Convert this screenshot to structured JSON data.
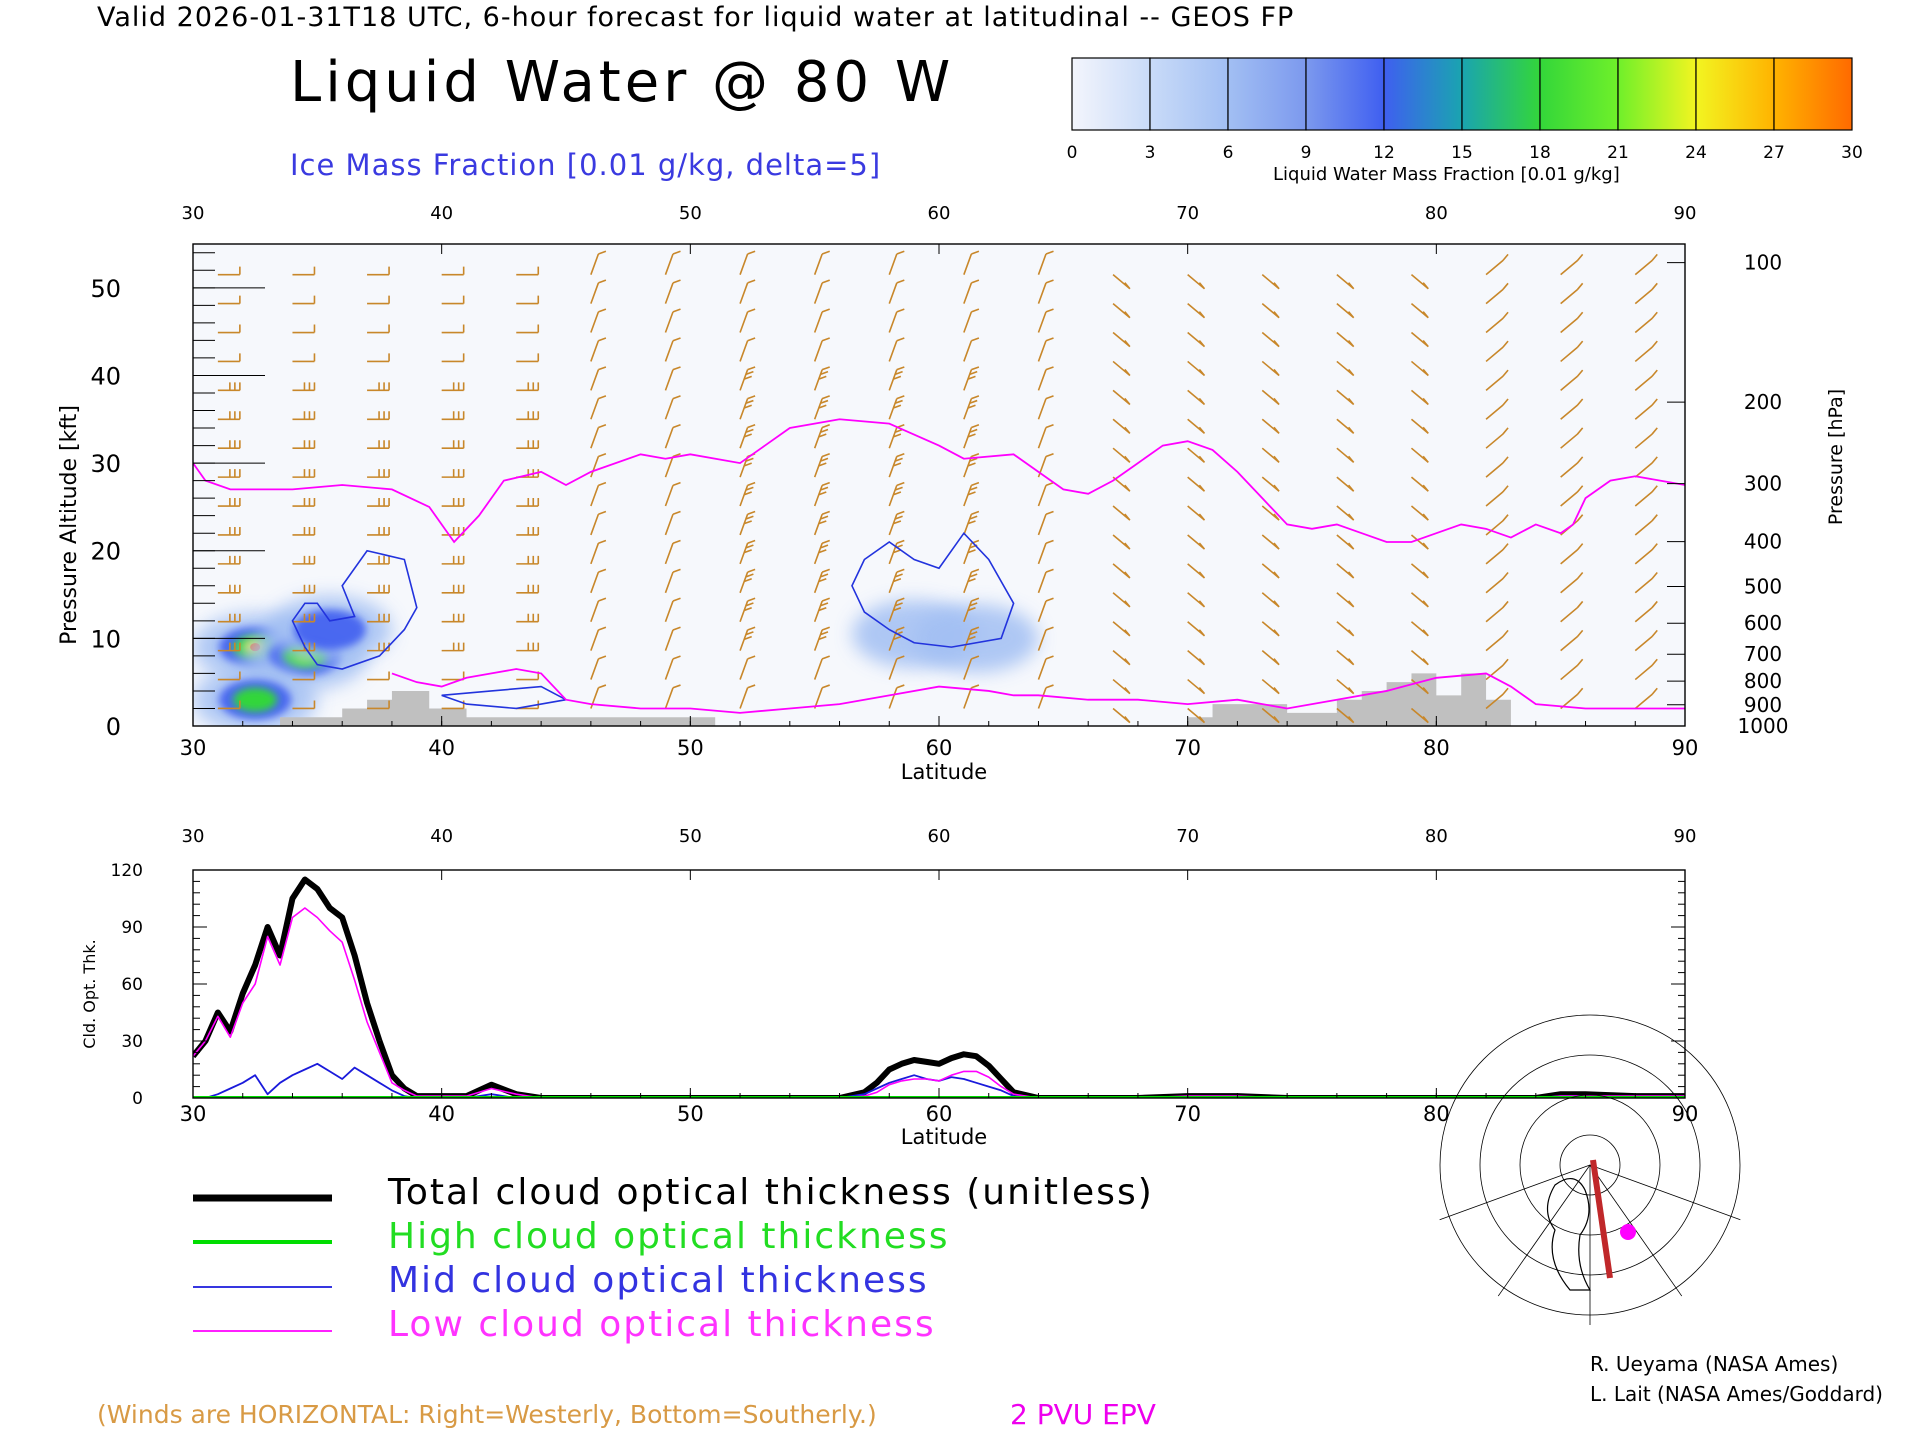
{
  "header": {
    "valid_line": "Valid 2026-01-31T18 UTC, 6-hour forecast for liquid water at latitudinal -- GEOS FP",
    "title": "Liquid Water @ 80 W",
    "subtitle": "Ice Mass Fraction [0.01 g/kg, delta=5]"
  },
  "colorbar": {
    "ticks": [
      "0",
      "3",
      "6",
      "9",
      "12",
      "15",
      "18",
      "21",
      "24",
      "27",
      "30"
    ],
    "label": "Liquid Water Mass Fraction [0.01 g/kg]",
    "colors": [
      "#f3f5fc",
      "#c9dbf8",
      "#a2bff3",
      "#7c99ee",
      "#3f5ff0",
      "#1aa4b0",
      "#33d63a",
      "#6ff02a",
      "#f2f521",
      "#ffb300",
      "#ff6a00"
    ]
  },
  "colors": {
    "winds": "#c8872a",
    "epv": "#ff00ff",
    "ice": "#2233dd",
    "topo": "#c0c0c0",
    "total": "#000000",
    "high": "#00dd00",
    "mid": "#1a1adb",
    "low": "#ff00ff"
  },
  "chart_data": [
    {
      "type": "heatmap",
      "xlabel": "Latitude",
      "ylabel_left": "Pressure Altitude [kft]",
      "ylabel_right": "Pressure [hPa]",
      "xlim": [
        30,
        90
      ],
      "ylim": [
        0,
        55
      ],
      "x_ticks": [
        "30",
        "40",
        "50",
        "60",
        "70",
        "80",
        "90"
      ],
      "y_ticks": [
        "0",
        "10",
        "20",
        "30",
        "40",
        "50"
      ],
      "pressure_ticks": [
        "100",
        "200",
        "300",
        "400",
        "500",
        "600",
        "700",
        "800",
        "900",
        "1000"
      ],
      "epv_2pvu": [
        [
          30,
          30
        ],
        [
          30.5,
          28
        ],
        [
          31.5,
          27
        ],
        [
          34,
          27
        ],
        [
          36,
          27.5
        ],
        [
          38,
          27
        ],
        [
          39.5,
          25
        ],
        [
          40.5,
          21
        ],
        [
          41.5,
          24
        ],
        [
          42.5,
          28
        ],
        [
          44,
          29
        ],
        [
          45,
          27.5
        ],
        [
          46,
          29
        ],
        [
          48,
          31
        ],
        [
          49,
          30.5
        ],
        [
          50,
          31
        ],
        [
          52,
          30
        ],
        [
          53,
          32
        ],
        [
          54,
          34
        ],
        [
          56,
          35
        ],
        [
          58,
          34.5
        ],
        [
          60,
          32
        ],
        [
          61,
          30.5
        ],
        [
          63,
          31
        ],
        [
          64,
          29
        ],
        [
          65,
          27
        ],
        [
          66,
          26.5
        ],
        [
          67,
          28
        ],
        [
          68,
          30
        ],
        [
          69,
          32
        ],
        [
          70,
          32.5
        ],
        [
          71,
          31.5
        ],
        [
          72,
          29
        ],
        [
          73,
          26
        ],
        [
          74,
          23
        ],
        [
          75,
          22.5
        ],
        [
          76,
          23
        ],
        [
          77,
          22
        ],
        [
          78,
          21
        ],
        [
          79,
          21
        ],
        [
          80,
          22
        ],
        [
          81,
          23
        ],
        [
          82,
          22.5
        ],
        [
          83,
          21.5
        ],
        [
          84,
          23
        ],
        [
          85,
          22
        ],
        [
          85.5,
          23
        ],
        [
          86,
          26
        ],
        [
          87,
          28
        ],
        [
          88,
          28.5
        ],
        [
          89,
          28
        ],
        [
          90,
          27.5
        ]
      ],
      "epv_low": [
        [
          38,
          6
        ],
        [
          39,
          5
        ],
        [
          40,
          4.5
        ],
        [
          41,
          5.5
        ],
        [
          42,
          6
        ],
        [
          43,
          6.5
        ],
        [
          44,
          6
        ],
        [
          45,
          3
        ],
        [
          46,
          2.5
        ],
        [
          48,
          2
        ],
        [
          50,
          2
        ],
        [
          52,
          1.5
        ],
        [
          54,
          2
        ],
        [
          56,
          2.5
        ],
        [
          58,
          3.5
        ],
        [
          60,
          4.5
        ],
        [
          62,
          4
        ],
        [
          63,
          3.5
        ],
        [
          64,
          3.5
        ],
        [
          66,
          3
        ],
        [
          68,
          3
        ],
        [
          70,
          2.5
        ],
        [
          72,
          3
        ],
        [
          74,
          2
        ],
        [
          76,
          3
        ],
        [
          78,
          4
        ],
        [
          80,
          5.5
        ],
        [
          82,
          6
        ],
        [
          83,
          4.5
        ],
        [
          84,
          2.5
        ],
        [
          86,
          2
        ],
        [
          88,
          2
        ],
        [
          90,
          2
        ]
      ],
      "topography": [
        [
          30,
          0
        ],
        [
          33.5,
          0
        ],
        [
          33.5,
          1
        ],
        [
          36,
          1
        ],
        [
          36,
          2
        ],
        [
          37,
          2
        ],
        [
          37,
          3
        ],
        [
          38,
          3
        ],
        [
          38,
          4
        ],
        [
          39.5,
          4
        ],
        [
          39.5,
          2
        ],
        [
          41,
          2
        ],
        [
          41,
          1
        ],
        [
          51,
          1
        ],
        [
          51,
          0
        ],
        [
          70,
          0
        ],
        [
          70,
          1
        ],
        [
          71,
          1
        ],
        [
          71,
          2.5
        ],
        [
          72,
          2.5
        ],
        [
          72,
          2.5
        ],
        [
          74,
          2.5
        ],
        [
          74,
          1.5
        ],
        [
          76,
          1.5
        ],
        [
          76,
          3
        ],
        [
          77,
          3
        ],
        [
          77,
          4
        ],
        [
          78,
          4
        ],
        [
          78,
          5
        ],
        [
          79,
          5
        ],
        [
          79,
          6
        ],
        [
          80,
          6
        ],
        [
          80,
          3.5
        ],
        [
          81,
          3.5
        ],
        [
          81,
          6
        ],
        [
          82,
          6
        ],
        [
          82,
          3
        ],
        [
          83,
          3
        ],
        [
          83,
          0
        ],
        [
          90,
          0
        ]
      ],
      "liquid_water_blobs": [
        {
          "lat": 32.5,
          "alt": 9,
          "value": 24
        },
        {
          "lat": 34.5,
          "alt": 8,
          "value": 22
        },
        {
          "lat": 32.5,
          "alt": 3,
          "value": 18
        },
        {
          "lat": 35.5,
          "alt": 11,
          "value": 9
        },
        {
          "lat": 59,
          "alt": 10.5,
          "value": 6
        },
        {
          "lat": 61.5,
          "alt": 10,
          "value": 6
        }
      ],
      "ice_contours": [
        {
          "value": 5,
          "points": [
            [
              35,
              14
            ],
            [
              35.5,
              12
            ],
            [
              36.5,
              12.5
            ],
            [
              36,
              16
            ],
            [
              37,
              20
            ],
            [
              38.5,
              19
            ],
            [
              39,
              13.5
            ],
            [
              38.5,
              11
            ],
            [
              37.5,
              8
            ],
            [
              36,
              6.5
            ],
            [
              35,
              7
            ],
            [
              34.5,
              9
            ],
            [
              34,
              12
            ],
            [
              34.5,
              14
            ]
          ]
        },
        {
          "value": 5,
          "points": [
            [
              57,
              19
            ],
            [
              58,
              21
            ],
            [
              59,
              19
            ],
            [
              60,
              18
            ],
            [
              61,
              22
            ],
            [
              62,
              19
            ],
            [
              63,
              14
            ],
            [
              62.5,
              10
            ],
            [
              60.5,
              9
            ],
            [
              59,
              9.5
            ],
            [
              58,
              11
            ],
            [
              57,
              13
            ],
            [
              56.5,
              16
            ],
            [
              57,
              19
            ]
          ]
        },
        {
          "value": 5,
          "points": [
            [
              42,
              4
            ],
            [
              44,
              4.5
            ],
            [
              45,
              3
            ],
            [
              43,
              2
            ],
            [
              41,
              2.5
            ],
            [
              40,
              3.5
            ],
            [
              42,
              4
            ]
          ]
        }
      ],
      "winds_note": "(Winds are HORIZONTAL: Right=Westerly, Bottom=Southerly.)",
      "epv_label": "2 PVU EPV"
    },
    {
      "type": "line",
      "xlabel": "Latitude",
      "ylabel": "Cld. Opt. Thk.",
      "xlim": [
        30,
        90
      ],
      "ylim": [
        0,
        120
      ],
      "x_ticks": [
        "30",
        "40",
        "50",
        "60",
        "70",
        "80",
        "90"
      ],
      "y_ticks": [
        "0",
        "30",
        "60",
        "90",
        "120"
      ],
      "x": [
        30,
        30.5,
        31,
        31.5,
        32,
        32.5,
        33,
        33.5,
        34,
        34.5,
        35,
        35.5,
        36,
        36.5,
        37,
        37.5,
        38,
        38.5,
        39,
        40,
        41,
        42,
        43,
        44,
        46,
        48,
        50,
        52,
        54,
        55,
        56,
        57,
        57.5,
        58,
        58.5,
        59,
        59.5,
        60,
        60.5,
        61,
        61.5,
        62,
        62.5,
        63,
        64,
        66,
        68,
        70,
        72,
        74,
        76,
        78,
        80,
        82,
        84,
        85,
        86,
        88,
        90
      ],
      "series": [
        {
          "name": "Total cloud optical thickness (unitless)",
          "values": [
            22,
            30,
            45,
            35,
            55,
            70,
            90,
            75,
            105,
            115,
            110,
            100,
            95,
            75,
            50,
            30,
            12,
            5,
            1,
            1,
            1,
            7,
            2,
            0,
            0,
            0,
            0,
            0,
            0,
            0,
            0,
            3,
            8,
            15,
            18,
            20,
            19,
            18,
            21,
            23,
            22,
            17,
            10,
            3,
            0,
            0,
            0,
            1,
            1,
            0,
            0,
            0,
            0,
            0,
            0,
            2,
            2,
            1,
            1
          ]
        },
        {
          "name": "High cloud optical thickness",
          "values": [
            0,
            0,
            0,
            0,
            0,
            0,
            0,
            0,
            0,
            0,
            0,
            0,
            0,
            0,
            0,
            0,
            0,
            0,
            0,
            0,
            0,
            0,
            0,
            0,
            0,
            0,
            0,
            0,
            0,
            0,
            0,
            0,
            0,
            0,
            0,
            0,
            0,
            0,
            0,
            0,
            0,
            0,
            0,
            0,
            0,
            0,
            0,
            0,
            0,
            0,
            0,
            0,
            0,
            0,
            0,
            0,
            0,
            0,
            0
          ]
        },
        {
          "name": "Mid cloud optical thickness",
          "values": [
            0,
            0,
            2,
            5,
            8,
            12,
            2,
            8,
            12,
            15,
            18,
            14,
            10,
            16,
            12,
            8,
            4,
            1,
            0,
            0,
            0,
            2,
            0,
            0,
            0,
            0,
            0,
            0,
            0,
            0,
            0,
            2,
            5,
            8,
            10,
            12,
            10,
            9,
            11,
            10,
            8,
            6,
            4,
            1,
            0,
            0,
            0,
            0,
            0,
            0,
            0,
            0,
            0,
            0,
            0,
            1,
            1,
            0,
            0
          ]
        },
        {
          "name": "Low cloud optical thickness",
          "values": [
            22,
            30,
            43,
            32,
            50,
            60,
            85,
            70,
            95,
            100,
            95,
            88,
            82,
            62,
            40,
            24,
            8,
            4,
            1,
            1,
            1,
            5,
            2,
            0,
            0,
            0,
            0,
            0,
            0,
            0,
            0,
            1,
            3,
            7,
            9,
            10,
            10,
            9,
            12,
            14,
            14,
            11,
            6,
            2,
            0,
            0,
            0,
            1,
            1,
            0,
            0,
            0,
            0,
            0,
            0,
            1,
            1,
            1,
            1
          ]
        }
      ]
    }
  ],
  "legend": {
    "total": "Total cloud optical thickness (unitless)",
    "high": "High cloud optical thickness",
    "mid": "Mid cloud optical thickness",
    "low": "Low cloud optical thickness"
  },
  "credits": {
    "line1": "R. Ueyama (NASA Ames)",
    "line2": "L. Lait (NASA Ames/Goddard)"
  }
}
